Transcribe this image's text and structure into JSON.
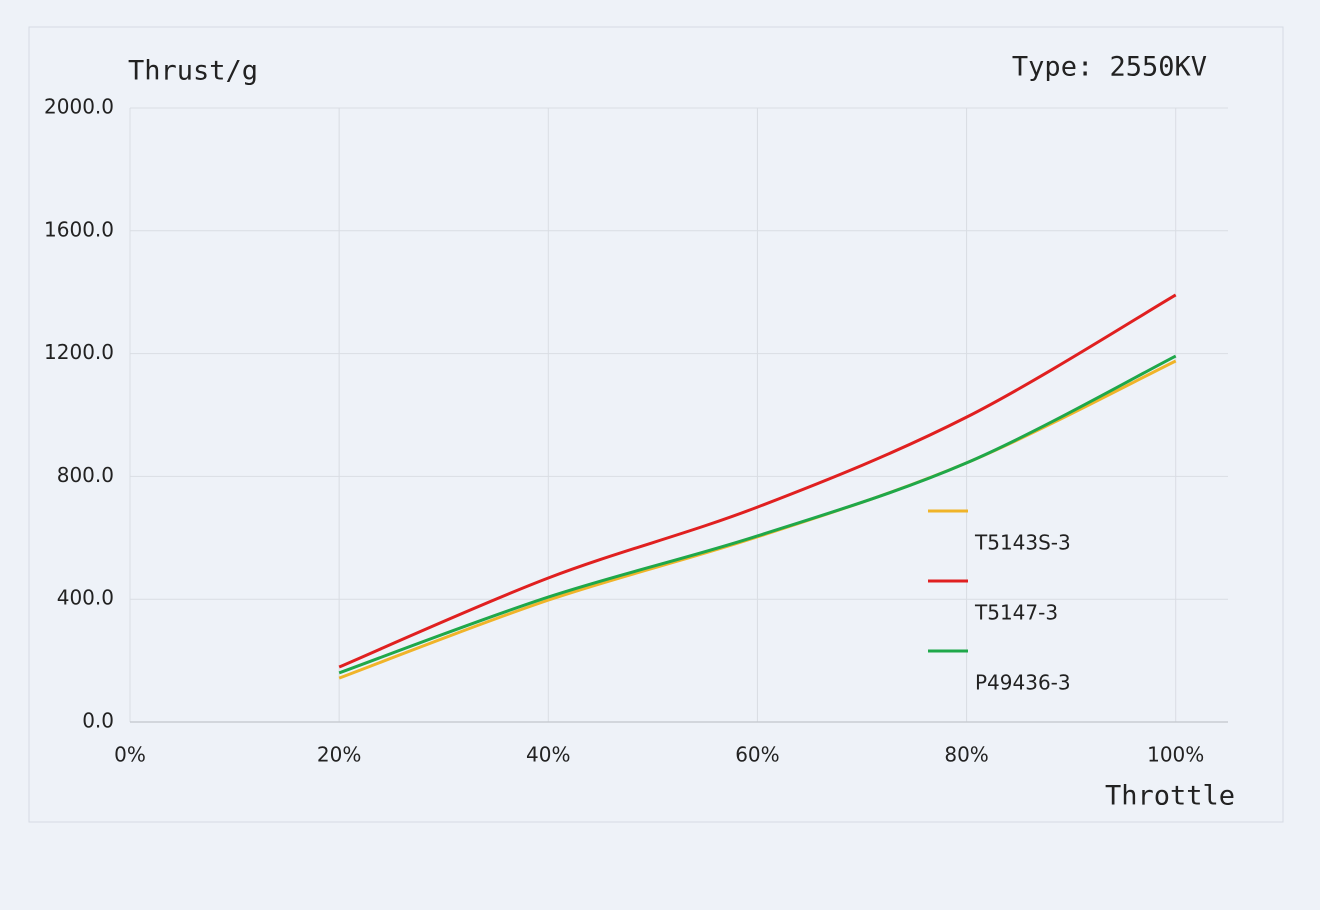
{
  "chart_data": {
    "type": "line",
    "annotation": "Type: 2550KV",
    "y_label": "Thrust/g",
    "x_label": "Throttle",
    "x": [
      20,
      40,
      60,
      80,
      100
    ],
    "series": [
      {
        "name": "T5143S-3",
        "color": "#f0b429",
        "values": [
          143,
          397,
          603,
          844,
          1176
        ]
      },
      {
        "name": "T5147-3",
        "color": "#e02020",
        "values": [
          179,
          469,
          700,
          993,
          1391
        ]
      },
      {
        "name": "P49436-3",
        "color": "#1fa84a",
        "values": [
          160,
          407,
          606,
          844,
          1192
        ]
      }
    ],
    "xlim": [
      0,
      105
    ],
    "ylim": [
      0,
      2000
    ],
    "xticks": [
      {
        "value": 0,
        "label": "0%"
      },
      {
        "value": 20,
        "label": "20%"
      },
      {
        "value": 40,
        "label": "40%"
      },
      {
        "value": 60,
        "label": "60%"
      },
      {
        "value": 80,
        "label": "80%"
      },
      {
        "value": 100,
        "label": "100%"
      }
    ],
    "yticks": [
      {
        "value": 0,
        "label": "0.0"
      },
      {
        "value": 400,
        "label": "400.0"
      },
      {
        "value": 800,
        "label": "800.0"
      },
      {
        "value": 1200,
        "label": "1200.0"
      },
      {
        "value": 1600,
        "label": "1600.0"
      },
      {
        "value": 2000,
        "label": "2000.0"
      }
    ],
    "grid": true,
    "legend": "lower right"
  }
}
